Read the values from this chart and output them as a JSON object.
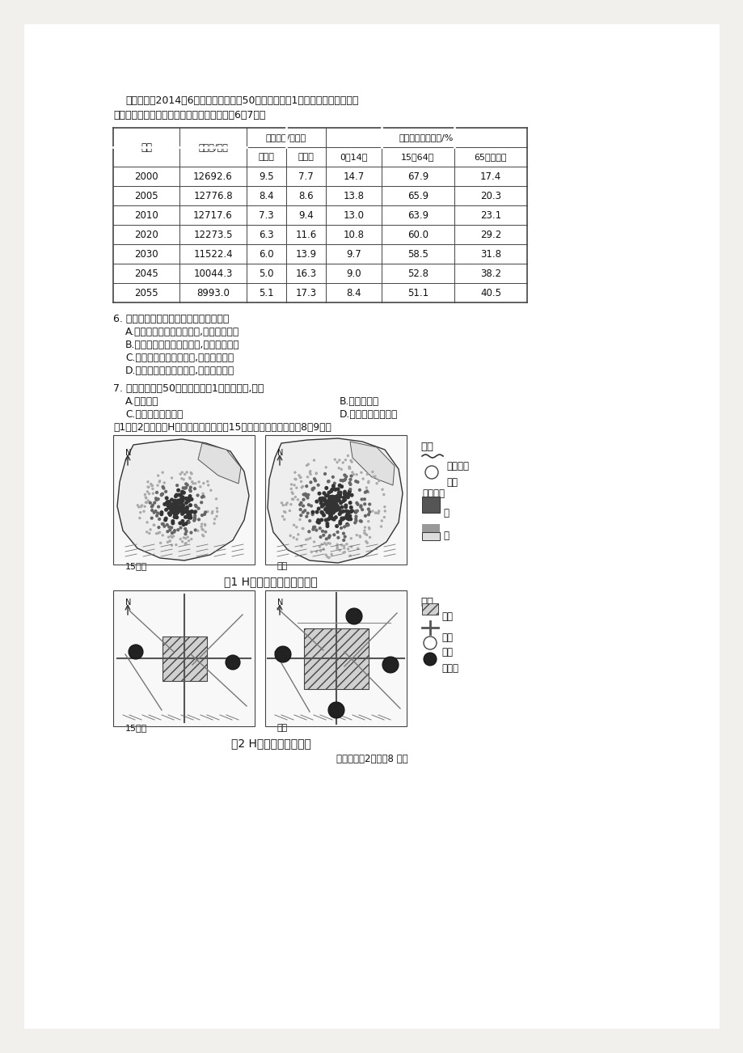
{
  "bg_color": "#f2f0ec",
  "page_bg": "#ffffff",
  "text_color": "#1a1a1a",
  "intro_line1": "日本政府在2014年6月首次明确设定了50年后维持人口1亿人的人口目标。下表",
  "intro_line2": "为日本人口统计及未来人口预测表。据此完成6～7题。",
  "table_headers_row1_col1": "年份",
  "table_headers_row1_col2": "总人口/万人",
  "table_headers_row1_col3": "人口动态/每千人",
  "table_headers_row1_col4": "不同年龄段的人口/%",
  "table_headers_row2": [
    "出生率",
    "死亡率",
    "0～14年",
    "15～64岁",
    "65岁及以上"
  ],
  "table_data": [
    [
      "2000",
      "12692.6",
      "9.5",
      "7.7",
      "14.7",
      "67.9",
      "17.4"
    ],
    [
      "2005",
      "12776.8",
      "8.4",
      "8.6",
      "13.8",
      "65.9",
      "20.3"
    ],
    [
      "2010",
      "12717.6",
      "7.3",
      "9.4",
      "13.0",
      "63.9",
      "23.1"
    ],
    [
      "2020",
      "12273.5",
      "6.3",
      "11.6",
      "10.8",
      "60.0",
      "29.2"
    ],
    [
      "2030",
      "11522.4",
      "6.0",
      "13.9",
      "9.7",
      "58.5",
      "31.8"
    ],
    [
      "2045",
      "10044.3",
      "5.0",
      "16.3",
      "9.0",
      "52.8",
      "38.2"
    ],
    [
      "2055",
      "8993.0",
      "5.1",
      "17.3",
      "8.4",
      "51.1",
      "40.5"
    ]
  ],
  "q6_text": "6. 日本不同年龄段的人口变化及其影响是",
  "q6_a": "A.青少年人口数量不断减少,社会负担加重",
  "q6_b": "B.非劳动年龄人口不断增加,社会负担减轻",
  "q6_c": "C.劳动年龄人口不断减少,社会负担加重",
  "q6_d": "D.老年人口数量不断增加,社会负担减轻",
  "q7_text": "7. 日本要想达到50年后维持人口1亿人的目标,应该",
  "q7_a": "A.鼓励生育",
  "q7_b": "B.向海外移民",
  "q7_c": "C.减少国内人口迁移",
  "q7_d": "D.延长老年人口寿命",
  "map_intro": "图1、图2分别表示H市人口密度和城区在15年间的变化。读图回答8～9题。",
  "fig1_title": "图1 H市人口密度变化示意图",
  "fig2_title": "图2 H市城区变化示意图",
  "leg1_title": "图例",
  "leg1_boundary": "城市边界",
  "leg1_lake": "湖泊",
  "leg1_density": "人口密度",
  "leg1_big": "大",
  "leg1_small": "小",
  "leg2_title": "图例",
  "leg2_urban": "城区",
  "leg2_road": "道路",
  "leg2_lake": "湖泊",
  "leg2_industry": "工业区",
  "label_before": "15年前",
  "label_now": "现在",
  "page_footer": "高一地理第2页（共8 页）"
}
